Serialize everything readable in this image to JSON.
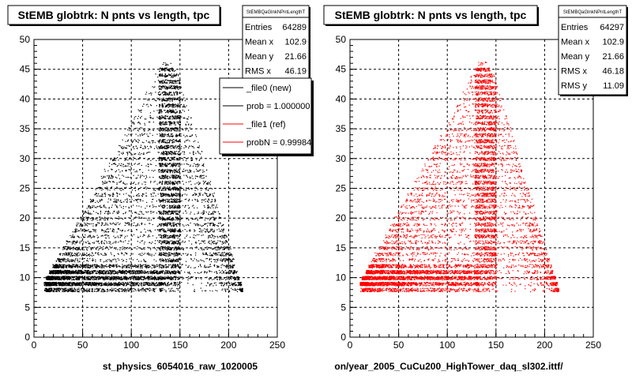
{
  "colors": {
    "file0": "#000000",
    "file1": "#ff0000",
    "frame": "#000000",
    "grid": "#000000",
    "bg": "#ffffff"
  },
  "footer_text": "",
  "chart_data": [
    {
      "type": "scatter",
      "title": "StEMB globtrk: N pnts vs length, tpc",
      "xlabel": "st_physics_6054016_raw_1020005",
      "ylabel": "",
      "xlim": [
        0,
        250
      ],
      "ylim": [
        0,
        50
      ],
      "xticks": [
        0,
        50,
        100,
        150,
        200,
        250
      ],
      "yticks": [
        0,
        5,
        10,
        15,
        20,
        25,
        30,
        35,
        40,
        45,
        50
      ],
      "grid": true,
      "marker_color": "#000000",
      "stats": {
        "name": "StEMBQaGlnkNPntLengthT",
        "rows": [
          {
            "label": "Entries",
            "value": "64289"
          },
          {
            "label": "Mean x",
            "value": "102.9"
          },
          {
            "label": "Mean y",
            "value": "21.66"
          },
          {
            "label": "RMS x",
            "value": "46.19"
          }
        ]
      },
      "legend": {
        "placement": "right",
        "entries": [
          {
            "label": "_file0 (new)",
            "color": "#000000"
          },
          {
            "label": "prob = 1.000000",
            "color": "#000000"
          },
          {
            "label": "_file1 (ref)",
            "color": "#ff0000"
          },
          {
            "label": "probN = 0.99984",
            "color": "#ff0000"
          }
        ]
      }
    },
    {
      "type": "scatter",
      "title": "StEMB globtrk: N pnts vs length, tpc",
      "xlabel": "on/year_2005_CuCu200_HighTower_daq_sl302.ittf/",
      "ylabel": "",
      "xlim": [
        0,
        250
      ],
      "ylim": [
        0,
        50
      ],
      "xticks": [
        0,
        50,
        100,
        150,
        200,
        250
      ],
      "yticks": [
        0,
        5,
        10,
        15,
        20,
        25,
        30,
        35,
        40,
        45,
        50
      ],
      "grid": true,
      "marker_color": "#ff0000",
      "stats": {
        "name": "StEMBQaGlnkNPntLengthT",
        "rows": [
          {
            "label": "Entries",
            "value": "64297"
          },
          {
            "label": "Mean x",
            "value": "102.9"
          },
          {
            "label": "Mean y",
            "value": "21.66"
          },
          {
            "label": "RMS x",
            "value": "46.18"
          },
          {
            "label": "RMS y",
            "value": "11.09"
          }
        ]
      }
    }
  ]
}
